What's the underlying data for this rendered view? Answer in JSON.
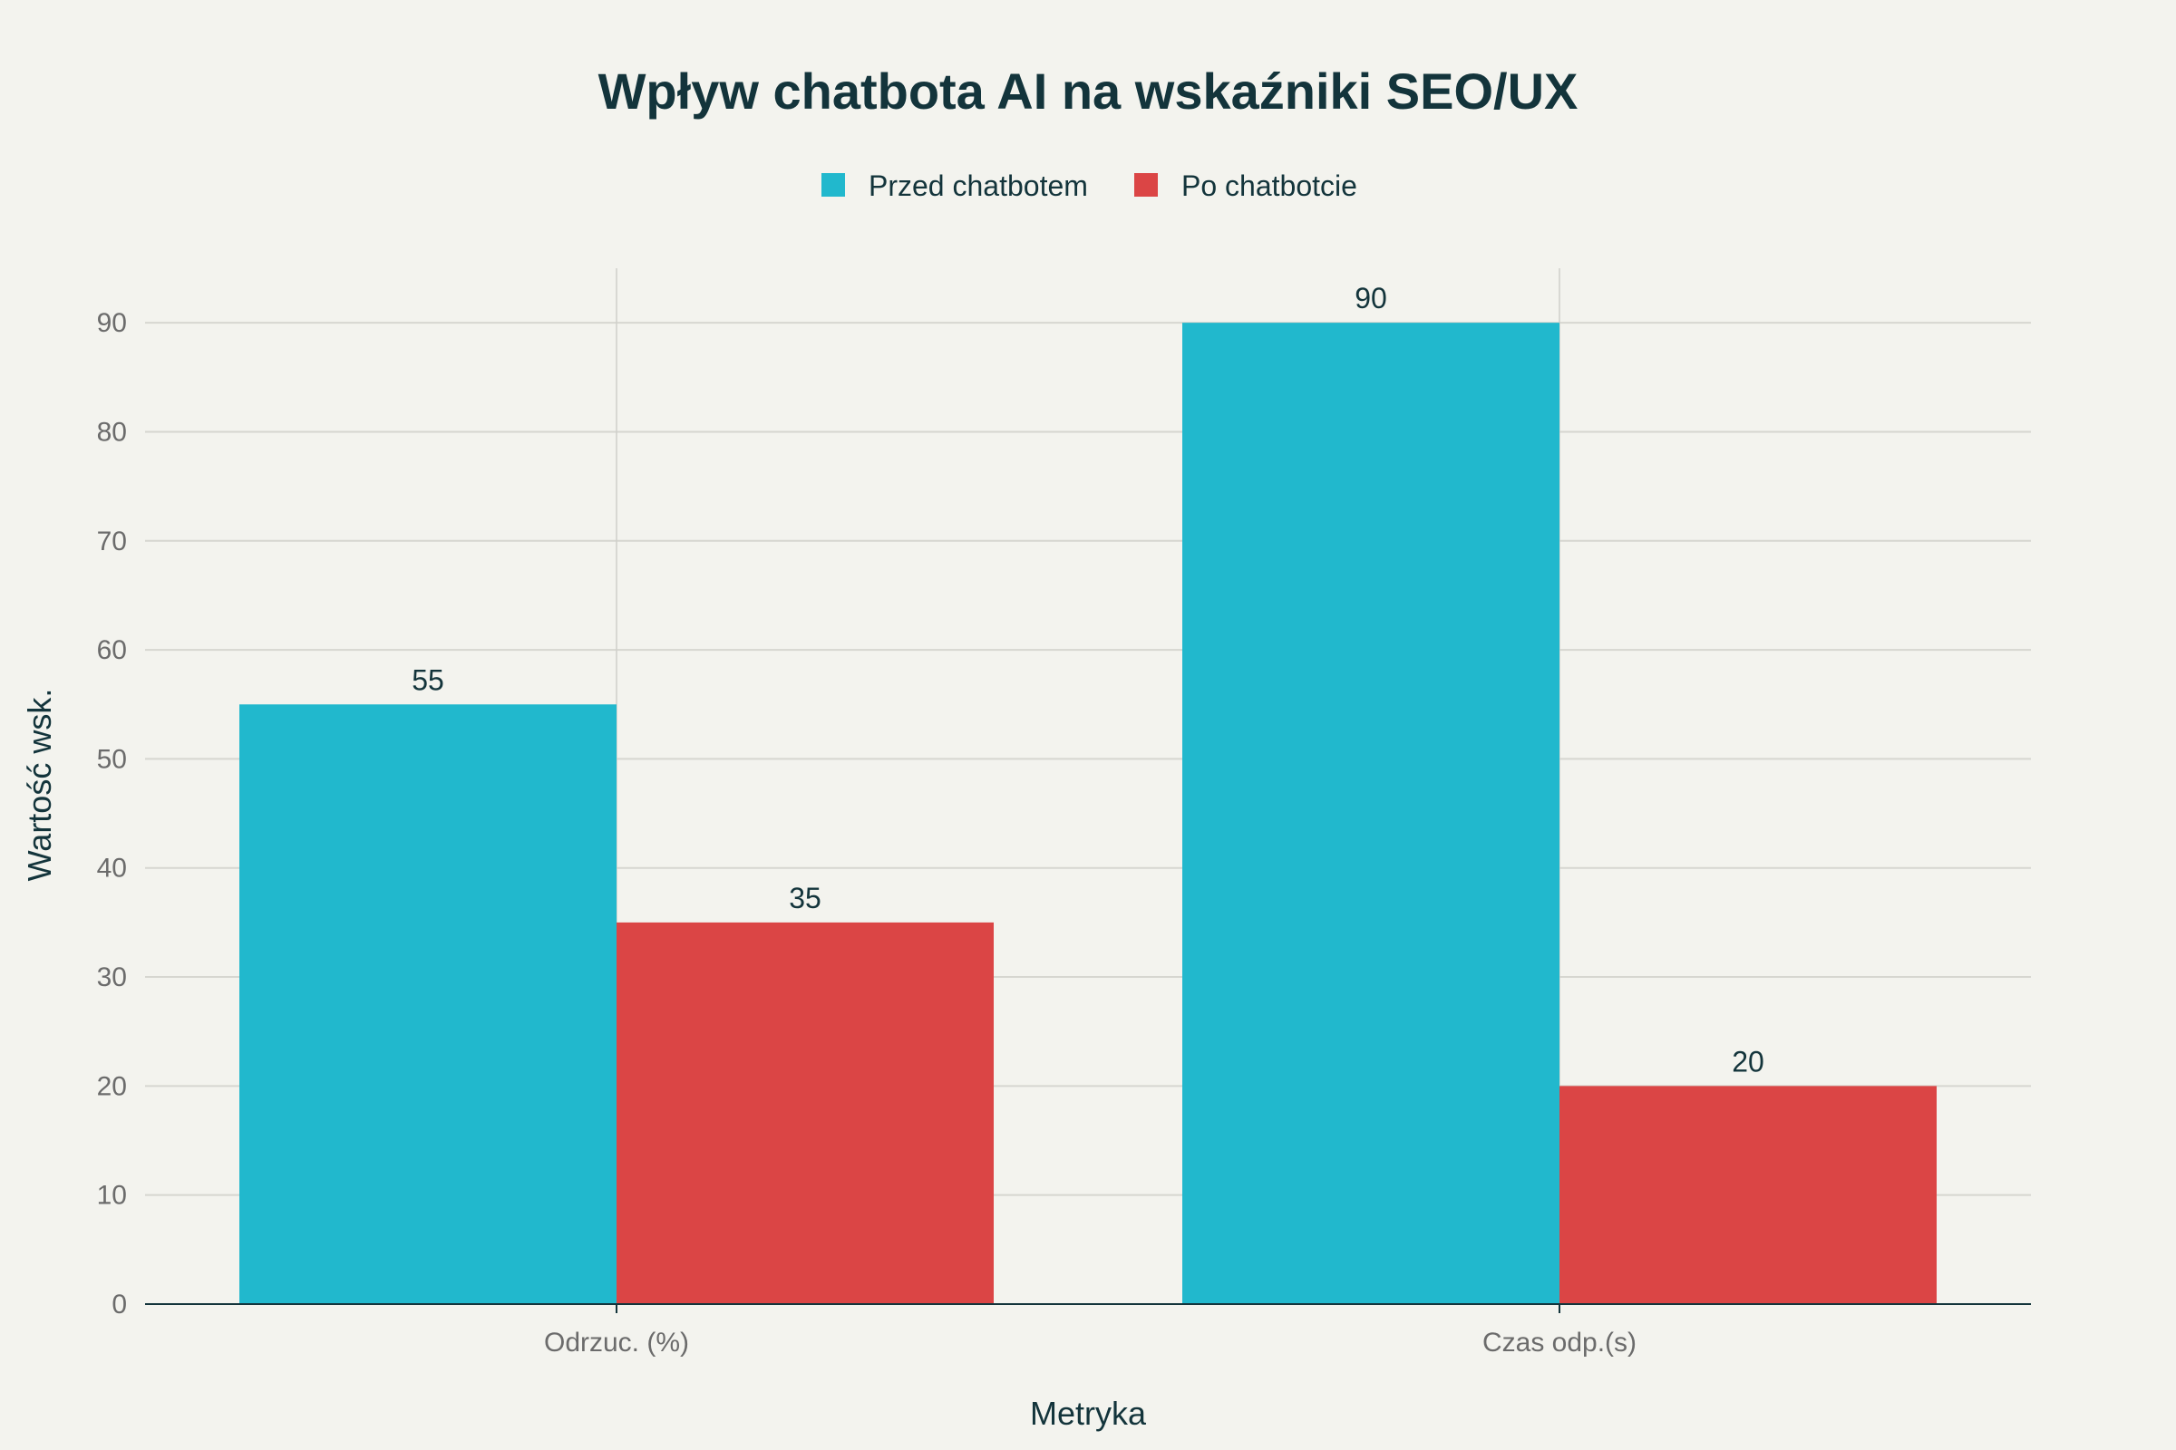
{
  "chart_data": {
    "type": "bar",
    "title": "Wpływ chatbota AI na wskaźniki SEO/UX",
    "xlabel": "Metryka",
    "ylabel": "Wartość wsk.",
    "categories": [
      "Odrzuc. (%)",
      "Czas odp.(s)"
    ],
    "series": [
      {
        "name": "Przed chatbotem",
        "values": [
          55,
          90
        ],
        "color": "#21b8cd"
      },
      {
        "name": "Po chatbotcie",
        "values": [
          35,
          20
        ],
        "color": "#db4545"
      }
    ],
    "ylim": [
      0,
      95
    ],
    "yticks": [
      0,
      10,
      20,
      30,
      40,
      50,
      60,
      70,
      80,
      90
    ],
    "grid": true,
    "legend_position": "top-center"
  }
}
